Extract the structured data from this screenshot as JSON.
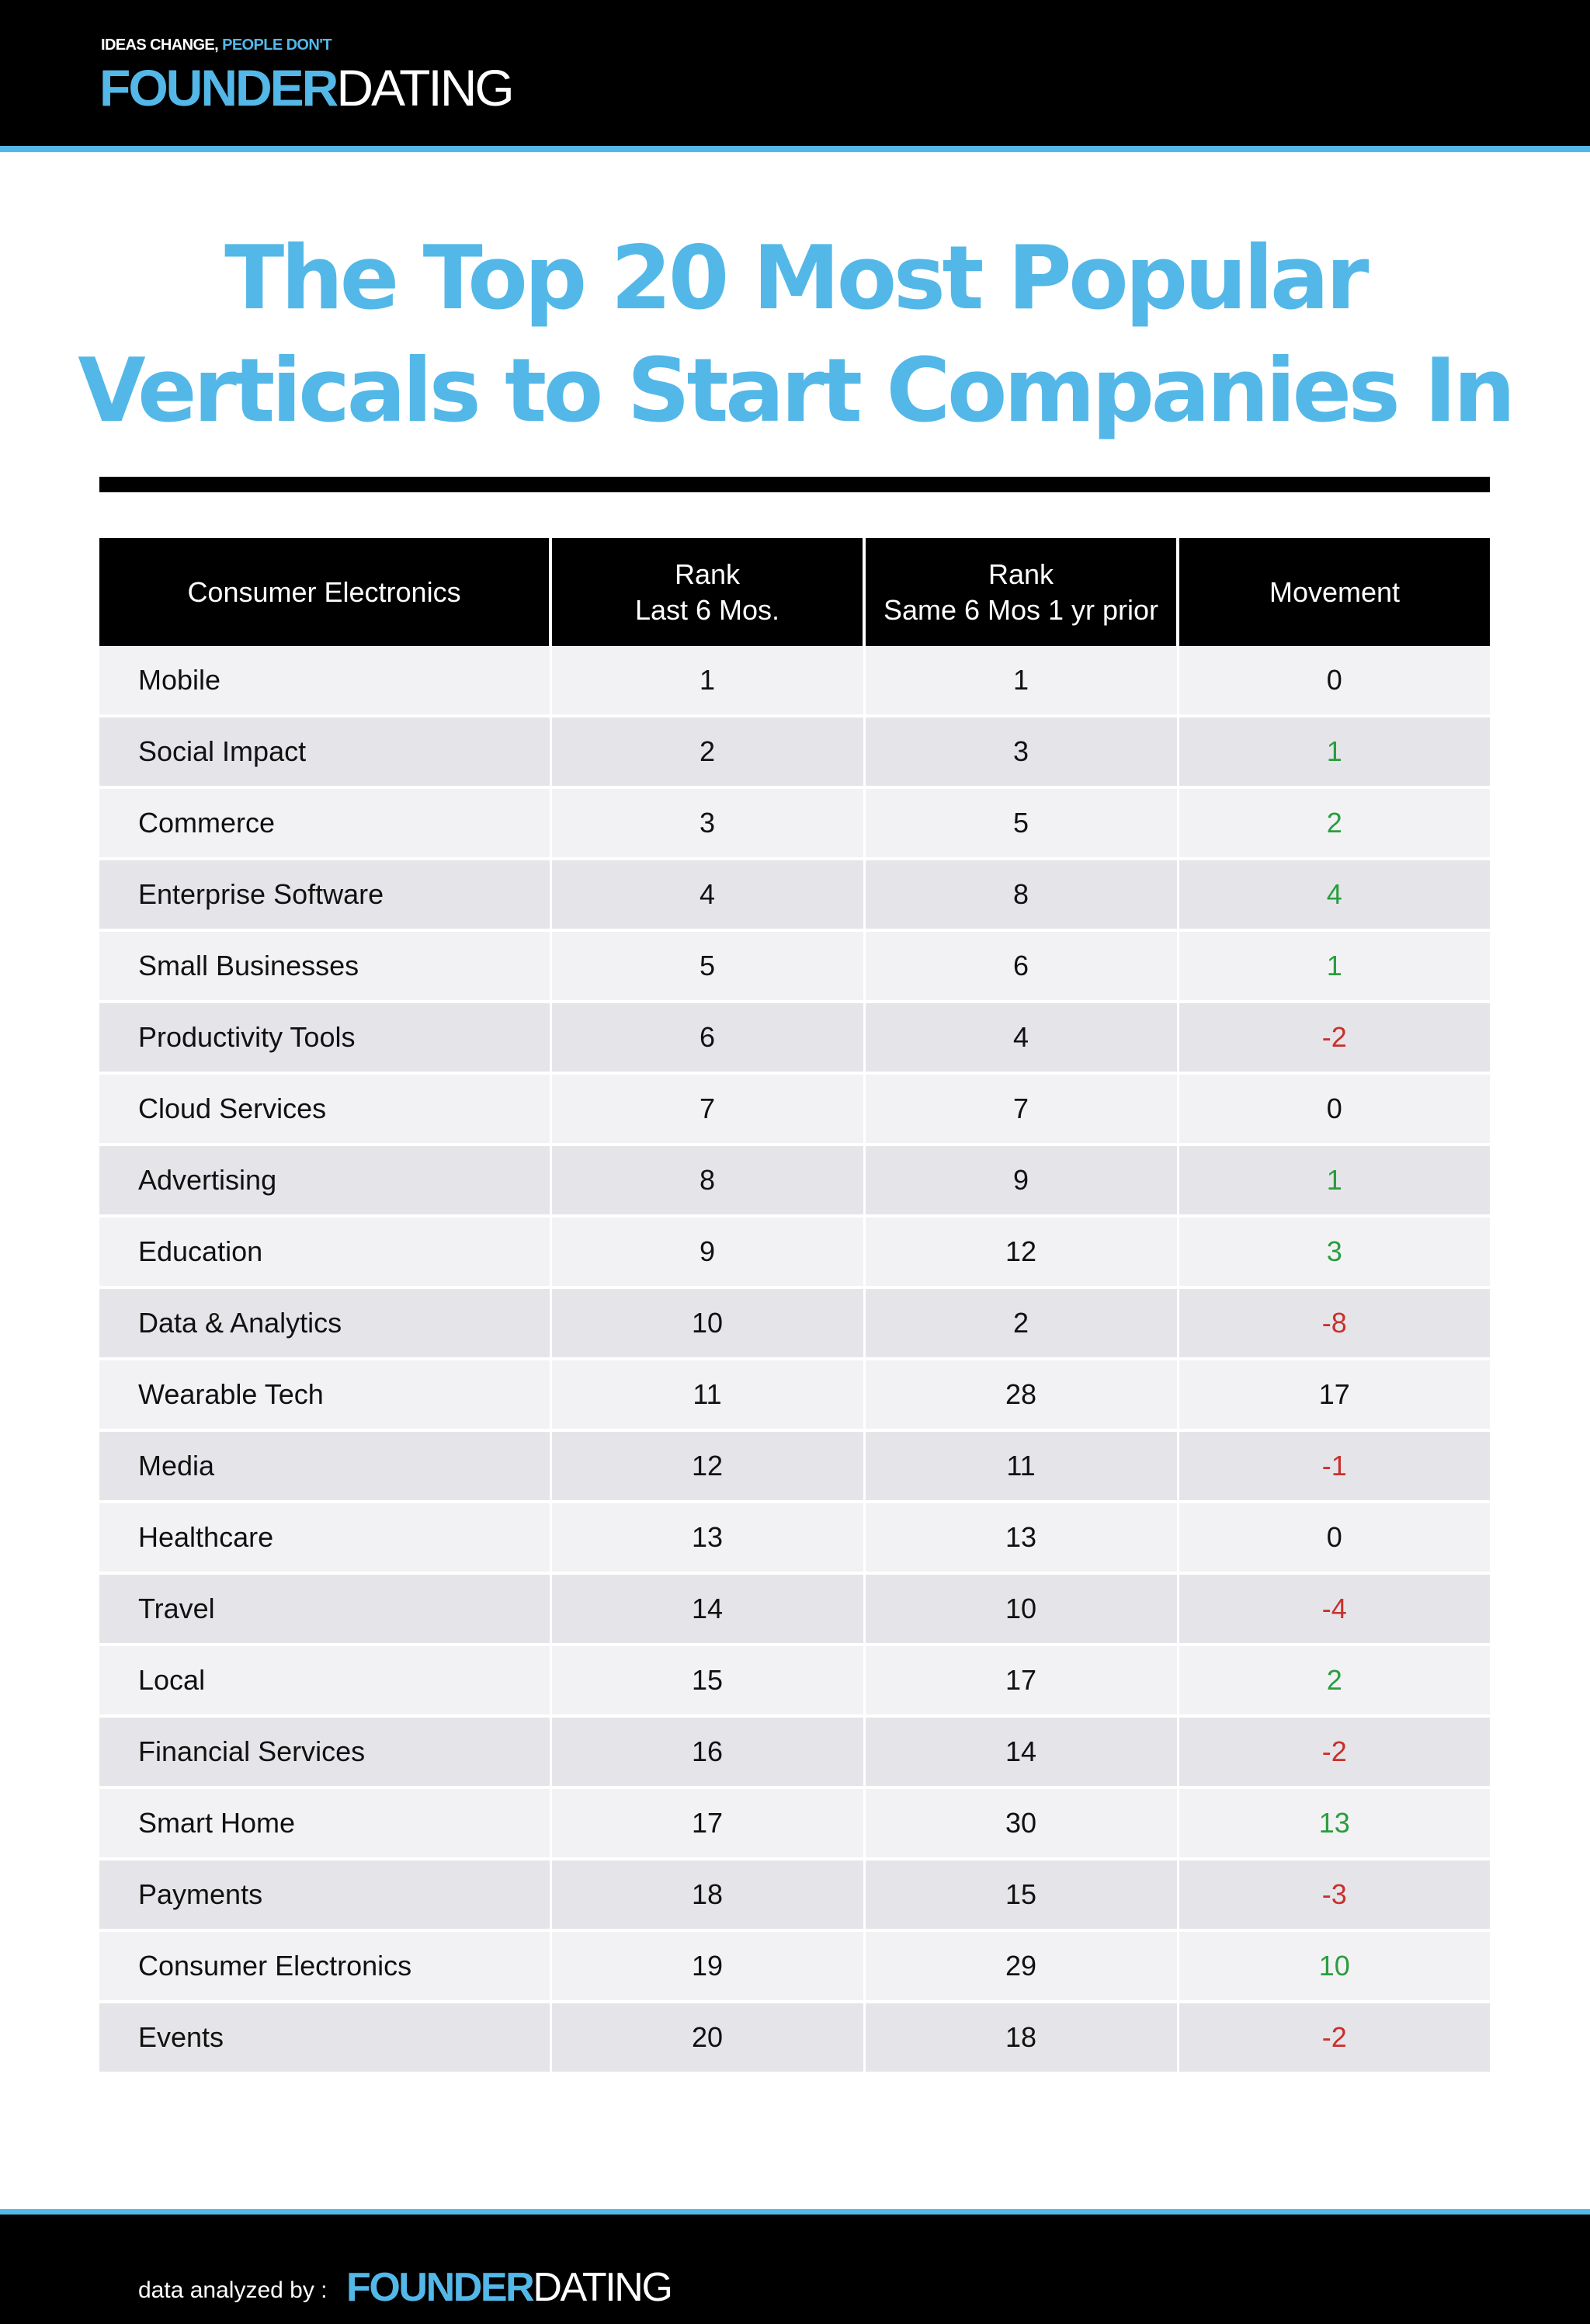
{
  "header": {
    "tagline_part1": "IDEAS CHANGE,",
    "tagline_part2": "PEOPLE DON'T",
    "brand_bold": "FOUNDER",
    "brand_light": "DATING"
  },
  "title": {
    "line1": "The Top 20 Most Popular",
    "line2": "Verticals to Start Companies In"
  },
  "chart_data": {
    "type": "table",
    "title": "The Top 20 Most Popular Verticals to Start Companies In",
    "columns": [
      {
        "line1": "Consumer Electronics",
        "line2": ""
      },
      {
        "line1": "Rank",
        "line2": "Last 6 Mos."
      },
      {
        "line1": "Rank",
        "line2": "Same 6 Mos 1 yr prior"
      },
      {
        "line1": "Movement",
        "line2": ""
      }
    ],
    "rows": [
      {
        "vertical": "Mobile",
        "rank_last_6": 1,
        "rank_prior": 1,
        "movement": 0
      },
      {
        "vertical": "Social Impact",
        "rank_last_6": 2,
        "rank_prior": 3,
        "movement": 1
      },
      {
        "vertical": "Commerce",
        "rank_last_6": 3,
        "rank_prior": 5,
        "movement": 2
      },
      {
        "vertical": "Enterprise Software",
        "rank_last_6": 4,
        "rank_prior": 8,
        "movement": 4
      },
      {
        "vertical": "Small Businesses",
        "rank_last_6": 5,
        "rank_prior": 6,
        "movement": 1
      },
      {
        "vertical": "Productivity Tools",
        "rank_last_6": 6,
        "rank_prior": 4,
        "movement": -2
      },
      {
        "vertical": "Cloud Services",
        "rank_last_6": 7,
        "rank_prior": 7,
        "movement": 0
      },
      {
        "vertical": "Advertising",
        "rank_last_6": 8,
        "rank_prior": 9,
        "movement": 1
      },
      {
        "vertical": "Education",
        "rank_last_6": 9,
        "rank_prior": 12,
        "movement": 3
      },
      {
        "vertical": "Data & Analytics",
        "rank_last_6": 10,
        "rank_prior": 2,
        "movement": -8
      },
      {
        "vertical": "Wearable Tech",
        "rank_last_6": 11,
        "rank_prior": 28,
        "movement": 17,
        "movement_color": "#111111"
      },
      {
        "vertical": "Media",
        "rank_last_6": 12,
        "rank_prior": 11,
        "movement": -1
      },
      {
        "vertical": "Healthcare",
        "rank_last_6": 13,
        "rank_prior": 13,
        "movement": 0
      },
      {
        "vertical": "Travel",
        "rank_last_6": 14,
        "rank_prior": 10,
        "movement": -4
      },
      {
        "vertical": "Local",
        "rank_last_6": 15,
        "rank_prior": 17,
        "movement": 2
      },
      {
        "vertical": "Financial Services",
        "rank_last_6": 16,
        "rank_prior": 14,
        "movement": -2
      },
      {
        "vertical": "Smart Home",
        "rank_last_6": 17,
        "rank_prior": 30,
        "movement": 13
      },
      {
        "vertical": "Payments",
        "rank_last_6": 18,
        "rank_prior": 15,
        "movement": -3
      },
      {
        "vertical": "Consumer Electronics",
        "rank_last_6": 19,
        "rank_prior": 29,
        "movement": 10
      },
      {
        "vertical": "Events",
        "rank_last_6": 20,
        "rank_prior": 18,
        "movement": -2
      }
    ],
    "colors": {
      "positive": "#2a9d3e",
      "negative": "#c9302c",
      "neutral": "#111111",
      "accent": "#53b8e8"
    }
  },
  "footer": {
    "label": "data analyzed by :",
    "brand_bold": "FOUNDER",
    "brand_light": "DATING"
  }
}
